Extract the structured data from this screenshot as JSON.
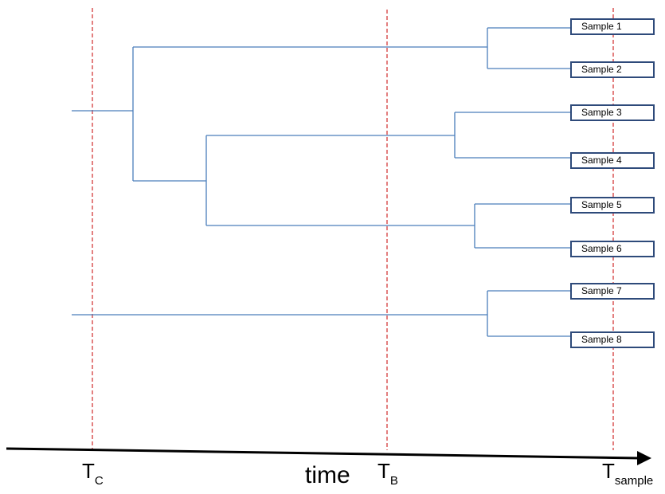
{
  "samples": [
    "Sample 1",
    "Sample 2",
    "Sample 3",
    "Sample 4",
    "Sample 5",
    "Sample 6",
    "Sample 7",
    "Sample 8"
  ],
  "time_markers": [
    {
      "base": "T",
      "sub": "C"
    },
    {
      "base": "T",
      "sub": "B"
    },
    {
      "base": "T",
      "sub": "sample"
    }
  ],
  "axis_label": "time",
  "colors": {
    "branch": "#4a7ebb",
    "marker_line": "#d02a2a",
    "box_border": "#2e4a7a",
    "axis": "#000000"
  }
}
